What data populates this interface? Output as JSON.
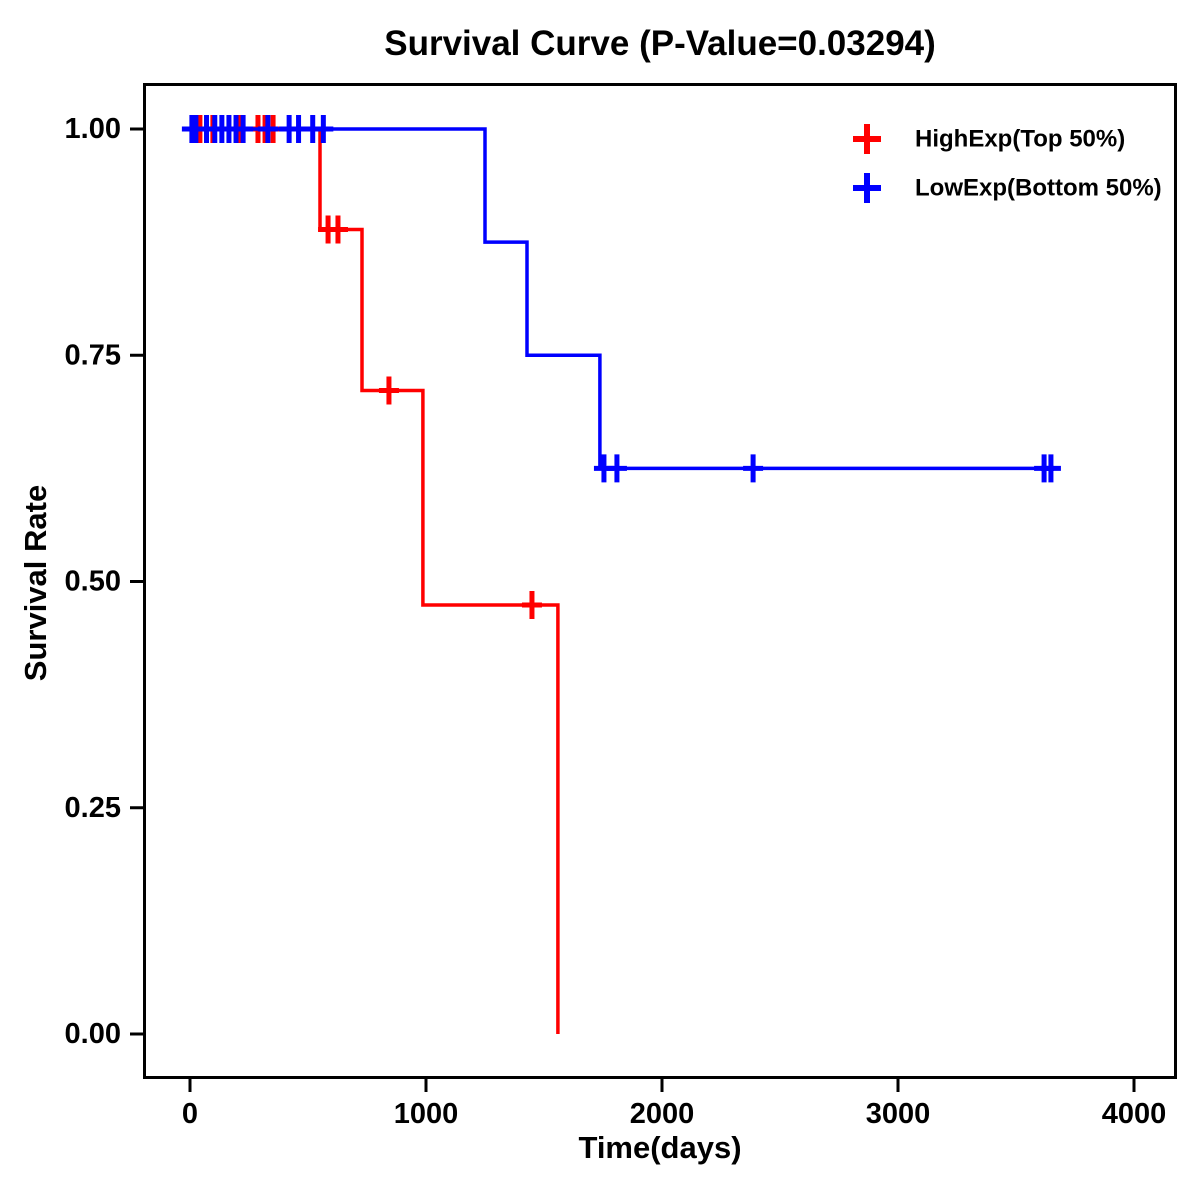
{
  "chart_data": {
    "type": "line",
    "variant": "kaplan-meier-step",
    "title": "Survival Curve (P-Value=0.03294)",
    "xlabel": "Time(days)",
    "ylabel": "Survival Rate",
    "xlim": [
      0,
      4000
    ],
    "ylim": [
      0.0,
      1.0
    ],
    "x_ticks": [
      0,
      1000,
      2000,
      3000,
      4000
    ],
    "x_tick_labels": [
      "0",
      "1000",
      "2000",
      "3000",
      "4000"
    ],
    "y_ticks": [
      0.0,
      0.25,
      0.5,
      0.75,
      1.0
    ],
    "y_tick_labels": [
      "0.00",
      "0.25",
      "0.50",
      "0.75",
      "1.00"
    ],
    "grid": false,
    "legend_position": "top-right-inside",
    "axis_color": "#000000",
    "background_color": "#ffffff",
    "series": [
      {
        "id": "highexp",
        "name": "HighExp(Top 50%)",
        "color": "#ff0000",
        "steps": [
          [
            0,
            1.0
          ],
          [
            551,
            1.0
          ],
          [
            551,
            0.889
          ],
          [
            729,
            0.889
          ],
          [
            729,
            0.711
          ],
          [
            987,
            0.711
          ],
          [
            987,
            0.474
          ],
          [
            1559,
            0.474
          ],
          [
            1559,
            0.0
          ]
        ],
        "censor_marks": [
          [
            42,
            1.0
          ],
          [
            97,
            1.0
          ],
          [
            212,
            1.0
          ],
          [
            288,
            1.0
          ],
          [
            318,
            1.0
          ],
          [
            352,
            1.0
          ],
          [
            585,
            0.889
          ],
          [
            627,
            0.889
          ],
          [
            843,
            0.711
          ],
          [
            1449,
            0.474
          ]
        ]
      },
      {
        "id": "lowexp",
        "name": "LowExp(Bottom 50%)",
        "color": "#0000ff",
        "steps": [
          [
            0,
            1.0
          ],
          [
            1250,
            1.0
          ],
          [
            1250,
            0.875
          ],
          [
            1428,
            0.875
          ],
          [
            1428,
            0.75
          ],
          [
            1737,
            0.75
          ],
          [
            1737,
            0.625
          ],
          [
            3678,
            0.625
          ]
        ],
        "censor_marks": [
          [
            8,
            1.0
          ],
          [
            25,
            1.0
          ],
          [
            70,
            1.0
          ],
          [
            105,
            1.0
          ],
          [
            135,
            1.0
          ],
          [
            165,
            1.0
          ],
          [
            195,
            1.0
          ],
          [
            225,
            1.0
          ],
          [
            330,
            1.0
          ],
          [
            420,
            1.0
          ],
          [
            460,
            1.0
          ],
          [
            520,
            1.0
          ],
          [
            565,
            1.0
          ],
          [
            1754,
            0.625
          ],
          [
            1809,
            0.625
          ],
          [
            2386,
            0.625
          ],
          [
            3619,
            0.625
          ],
          [
            3648,
            0.625
          ]
        ]
      }
    ]
  }
}
